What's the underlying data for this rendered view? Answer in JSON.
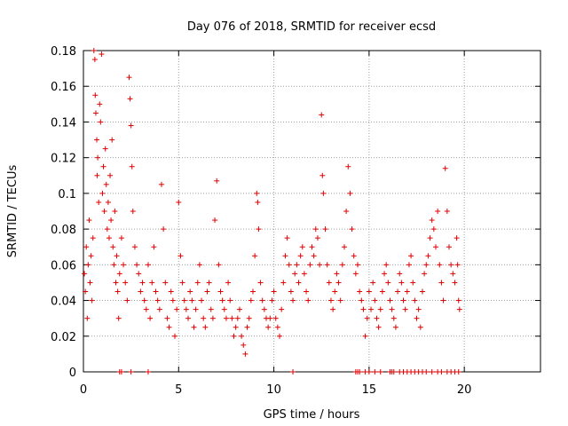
{
  "chart_data": {
    "type": "scatter",
    "title": "Day 076 of 2018, SRMTID for receiver ecsd",
    "xlabel": "GPS time / hours",
    "ylabel": "SRMTID / TECUs",
    "xlim": [
      0,
      24
    ],
    "ylim": [
      0,
      0.18
    ],
    "xticks": [
      0,
      5,
      10,
      15,
      20
    ],
    "xtick_labels": [
      "0",
      "5",
      "10",
      "15",
      "20"
    ],
    "yticks": [
      0,
      0.02,
      0.04,
      0.06,
      0.08,
      0.1,
      0.12,
      0.14,
      0.16,
      0.18
    ],
    "ytick_labels": [
      "0",
      "0.02",
      "0.04",
      "0.06",
      "0.08",
      "0.1",
      "0.12",
      "0.14",
      "0.16",
      "0.18"
    ],
    "grid": true,
    "color": "#e00000",
    "marker": "+",
    "series": [
      {
        "name": "SRMTID",
        "points": [
          [
            0.05,
            0.055
          ],
          [
            0.1,
            0.045
          ],
          [
            0.15,
            0.07
          ],
          [
            0.2,
            0.03
          ],
          [
            0.25,
            0.06
          ],
          [
            0.3,
            0.085
          ],
          [
            0.35,
            0.05
          ],
          [
            0.4,
            0.065
          ],
          [
            0.45,
            0.04
          ],
          [
            0.5,
            0.075
          ],
          [
            0.55,
            0.18
          ],
          [
            0.6,
            0.175
          ],
          [
            0.62,
            0.155
          ],
          [
            0.65,
            0.145
          ],
          [
            0.7,
            0.13
          ],
          [
            0.72,
            0.11
          ],
          [
            0.75,
            0.12
          ],
          [
            0.8,
            0.095
          ],
          [
            0.85,
            0.15
          ],
          [
            0.9,
            0.14
          ],
          [
            0.95,
            0.178
          ],
          [
            1.0,
            0.1
          ],
          [
            1.05,
            0.115
          ],
          [
            1.1,
            0.09
          ],
          [
            1.15,
            0.125
          ],
          [
            1.2,
            0.105
          ],
          [
            1.25,
            0.08
          ],
          [
            1.3,
            0.095
          ],
          [
            1.35,
            0.075
          ],
          [
            1.4,
            0.11
          ],
          [
            1.45,
            0.085
          ],
          [
            1.5,
            0.13
          ],
          [
            1.55,
            0.07
          ],
          [
            1.6,
            0.06
          ],
          [
            1.65,
            0.09
          ],
          [
            1.7,
            0.05
          ],
          [
            1.75,
            0.065
          ],
          [
            1.8,
            0.045
          ],
          [
            1.85,
            0.03
          ],
          [
            1.9,
            0.055
          ],
          [
            2.0,
            0.075
          ],
          [
            2.1,
            0.06
          ],
          [
            2.2,
            0.05
          ],
          [
            2.3,
            0.04
          ],
          [
            2.4,
            0.165
          ],
          [
            2.45,
            0.153
          ],
          [
            2.5,
            0.138
          ],
          [
            2.55,
            0.115
          ],
          [
            2.6,
            0.09
          ],
          [
            2.7,
            0.07
          ],
          [
            2.8,
            0.06
          ],
          [
            2.9,
            0.055
          ],
          [
            3.0,
            0.045
          ],
          [
            3.1,
            0.05
          ],
          [
            3.2,
            0.04
          ],
          [
            3.3,
            0.035
          ],
          [
            3.4,
            0.06
          ],
          [
            3.5,
            0.03
          ],
          [
            3.6,
            0.05
          ],
          [
            3.7,
            0.07
          ],
          [
            3.8,
            0.045
          ],
          [
            3.9,
            0.04
          ],
          [
            4.0,
            0.035
          ],
          [
            4.1,
            0.105
          ],
          [
            4.2,
            0.08
          ],
          [
            4.3,
            0.05
          ],
          [
            4.4,
            0.03
          ],
          [
            4.5,
            0.025
          ],
          [
            4.6,
            0.045
          ],
          [
            4.7,
            0.04
          ],
          [
            4.8,
            0.02
          ],
          [
            4.9,
            0.035
          ],
          [
            5.0,
            0.095
          ],
          [
            5.1,
            0.065
          ],
          [
            5.2,
            0.05
          ],
          [
            5.3,
            0.04
          ],
          [
            5.4,
            0.035
          ],
          [
            5.5,
            0.03
          ],
          [
            5.6,
            0.045
          ],
          [
            5.7,
            0.04
          ],
          [
            5.8,
            0.025
          ],
          [
            5.9,
            0.035
          ],
          [
            6.0,
            0.05
          ],
          [
            6.1,
            0.06
          ],
          [
            6.2,
            0.04
          ],
          [
            6.3,
            0.03
          ],
          [
            6.4,
            0.025
          ],
          [
            6.5,
            0.045
          ],
          [
            6.6,
            0.05
          ],
          [
            6.7,
            0.035
          ],
          [
            6.8,
            0.03
          ],
          [
            6.9,
            0.085
          ],
          [
            7.0,
            0.107
          ],
          [
            7.1,
            0.06
          ],
          [
            7.2,
            0.045
          ],
          [
            7.3,
            0.04
          ],
          [
            7.4,
            0.035
          ],
          [
            7.5,
            0.03
          ],
          [
            7.6,
            0.05
          ],
          [
            7.7,
            0.04
          ],
          [
            7.8,
            0.03
          ],
          [
            7.9,
            0.02
          ],
          [
            8.0,
            0.025
          ],
          [
            8.1,
            0.03
          ],
          [
            8.2,
            0.035
          ],
          [
            8.3,
            0.02
          ],
          [
            8.4,
            0.015
          ],
          [
            8.5,
            0.01
          ],
          [
            8.6,
            0.025
          ],
          [
            8.7,
            0.03
          ],
          [
            8.8,
            0.04
          ],
          [
            8.9,
            0.045
          ],
          [
            9.0,
            0.065
          ],
          [
            9.1,
            0.1
          ],
          [
            9.15,
            0.095
          ],
          [
            9.2,
            0.08
          ],
          [
            9.3,
            0.05
          ],
          [
            9.4,
            0.04
          ],
          [
            9.5,
            0.035
          ],
          [
            9.6,
            0.03
          ],
          [
            9.7,
            0.025
          ],
          [
            9.8,
            0.03
          ],
          [
            9.9,
            0.04
          ],
          [
            10.0,
            0.045
          ],
          [
            10.1,
            0.03
          ],
          [
            10.2,
            0.025
          ],
          [
            10.3,
            0.02
          ],
          [
            10.4,
            0.035
          ],
          [
            10.5,
            0.05
          ],
          [
            10.6,
            0.065
          ],
          [
            10.7,
            0.075
          ],
          [
            10.8,
            0.06
          ],
          [
            10.9,
            0.045
          ],
          [
            11.0,
            0.04
          ],
          [
            11.1,
            0.055
          ],
          [
            11.2,
            0.06
          ],
          [
            11.3,
            0.05
          ],
          [
            11.4,
            0.065
          ],
          [
            11.5,
            0.07
          ],
          [
            11.6,
            0.055
          ],
          [
            11.7,
            0.045
          ],
          [
            11.8,
            0.04
          ],
          [
            11.9,
            0.06
          ],
          [
            12.0,
            0.07
          ],
          [
            12.1,
            0.065
          ],
          [
            12.2,
            0.08
          ],
          [
            12.3,
            0.075
          ],
          [
            12.4,
            0.06
          ],
          [
            12.5,
            0.144
          ],
          [
            12.55,
            0.11
          ],
          [
            12.6,
            0.1
          ],
          [
            12.7,
            0.08
          ],
          [
            12.8,
            0.06
          ],
          [
            12.9,
            0.05
          ],
          [
            13.0,
            0.04
          ],
          [
            13.1,
            0.035
          ],
          [
            13.2,
            0.045
          ],
          [
            13.3,
            0.055
          ],
          [
            13.4,
            0.05
          ],
          [
            13.5,
            0.04
          ],
          [
            13.6,
            0.06
          ],
          [
            13.7,
            0.07
          ],
          [
            13.8,
            0.09
          ],
          [
            13.9,
            0.115
          ],
          [
            14.0,
            0.1
          ],
          [
            14.1,
            0.08
          ],
          [
            14.2,
            0.065
          ],
          [
            14.3,
            0.055
          ],
          [
            14.4,
            0.06
          ],
          [
            14.5,
            0.045
          ],
          [
            14.6,
            0.04
          ],
          [
            14.7,
            0.035
          ],
          [
            14.8,
            0.02
          ],
          [
            14.9,
            0.03
          ],
          [
            15.0,
            0.045
          ],
          [
            15.1,
            0.035
          ],
          [
            15.2,
            0.05
          ],
          [
            15.3,
            0.04
          ],
          [
            15.4,
            0.03
          ],
          [
            15.5,
            0.025
          ],
          [
            15.6,
            0.035
          ],
          [
            15.7,
            0.045
          ],
          [
            15.8,
            0.055
          ],
          [
            15.9,
            0.06
          ],
          [
            16.0,
            0.05
          ],
          [
            16.1,
            0.04
          ],
          [
            16.2,
            0.035
          ],
          [
            16.3,
            0.03
          ],
          [
            16.4,
            0.025
          ],
          [
            16.5,
            0.045
          ],
          [
            16.6,
            0.055
          ],
          [
            16.7,
            0.05
          ],
          [
            16.8,
            0.04
          ],
          [
            16.9,
            0.035
          ],
          [
            17.0,
            0.045
          ],
          [
            17.1,
            0.06
          ],
          [
            17.2,
            0.065
          ],
          [
            17.3,
            0.05
          ],
          [
            17.4,
            0.04
          ],
          [
            17.5,
            0.03
          ],
          [
            17.6,
            0.035
          ],
          [
            17.7,
            0.025
          ],
          [
            17.8,
            0.045
          ],
          [
            17.9,
            0.055
          ],
          [
            18.0,
            0.06
          ],
          [
            18.1,
            0.065
          ],
          [
            18.2,
            0.075
          ],
          [
            18.3,
            0.085
          ],
          [
            18.4,
            0.08
          ],
          [
            18.5,
            0.07
          ],
          [
            18.6,
            0.09
          ],
          [
            18.7,
            0.06
          ],
          [
            18.8,
            0.05
          ],
          [
            18.9,
            0.04
          ],
          [
            19.0,
            0.114
          ],
          [
            19.1,
            0.09
          ],
          [
            19.2,
            0.07
          ],
          [
            19.3,
            0.06
          ],
          [
            19.4,
            0.055
          ],
          [
            19.5,
            0.05
          ],
          [
            19.6,
            0.075
          ],
          [
            19.65,
            0.06
          ],
          [
            19.7,
            0.04
          ],
          [
            19.75,
            0.035
          ]
        ],
        "zero_points": [
          1.9,
          2.0,
          2.5,
          3.4,
          11.0,
          14.3,
          14.4,
          14.5,
          14.8,
          15.0,
          15.3,
          15.6,
          16.1,
          16.2,
          16.3,
          16.6,
          16.8,
          17.0,
          17.2,
          17.4,
          17.6,
          17.8,
          18.0,
          18.3,
          18.6,
          18.8,
          19.1,
          19.3,
          19.5,
          19.7
        ]
      }
    ]
  }
}
